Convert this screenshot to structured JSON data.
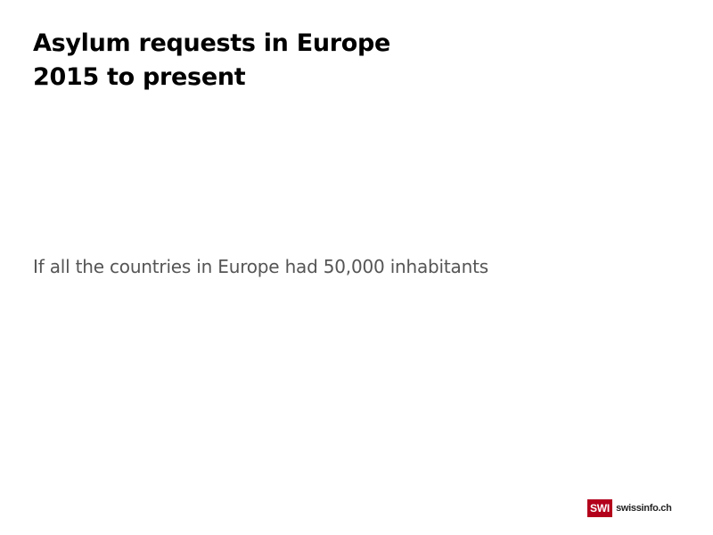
{
  "header": {
    "title_line1": "Asylum requests in Europe",
    "title_line2": "2015 to present"
  },
  "main": {
    "subtitle": "If all the countries in Europe had 50,000 inhabitants"
  },
  "footer": {
    "logo": {
      "mark": "SWI",
      "site": "swissinfo.ch",
      "brand_color": "#b3001b"
    }
  }
}
